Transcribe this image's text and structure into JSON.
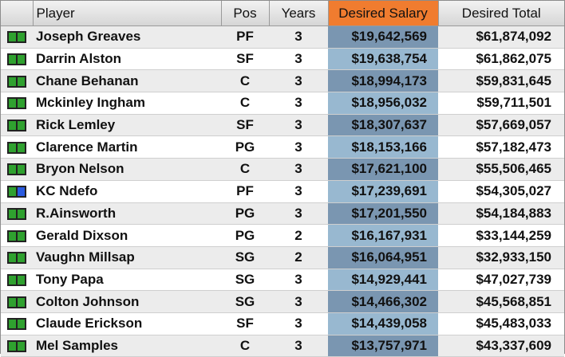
{
  "table": {
    "headers": {
      "player": "Player",
      "pos": "Pos",
      "years": "Years",
      "desired_salary": "Desired Salary",
      "desired_total": "Desired Total"
    },
    "rows": [
      {
        "icon": "green-green-flag-icon",
        "player": "Joseph Greaves",
        "pos": "PF",
        "years": "3",
        "salary": "$19,642,569",
        "total": "$61,874,092"
      },
      {
        "icon": "green-green-flag-icon",
        "player": "Darrin Alston",
        "pos": "SF",
        "years": "3",
        "salary": "$19,638,754",
        "total": "$61,862,075"
      },
      {
        "icon": "green-green-flag-icon",
        "player": "Chane Behanan",
        "pos": "C",
        "years": "3",
        "salary": "$18,994,173",
        "total": "$59,831,645"
      },
      {
        "icon": "green-green-flag-icon",
        "player": "Mckinley Ingham",
        "pos": "C",
        "years": "3",
        "salary": "$18,956,032",
        "total": "$59,711,501"
      },
      {
        "icon": "green-green-flag-icon",
        "player": "Rick Lemley",
        "pos": "SF",
        "years": "3",
        "salary": "$18,307,637",
        "total": "$57,669,057"
      },
      {
        "icon": "green-green-flag-icon",
        "player": "Clarence Martin",
        "pos": "PG",
        "years": "3",
        "salary": "$18,153,166",
        "total": "$57,182,473"
      },
      {
        "icon": "green-green-flag-icon",
        "player": "Bryon Nelson",
        "pos": "C",
        "years": "3",
        "salary": "$17,621,100",
        "total": "$55,506,465"
      },
      {
        "icon": "green-blue-flag-icon",
        "player": "KC Ndefo",
        "pos": "PF",
        "years": "3",
        "salary": "$17,239,691",
        "total": "$54,305,027"
      },
      {
        "icon": "green-green-flag-icon",
        "player": "R.Ainsworth",
        "pos": "PG",
        "years": "3",
        "salary": "$17,201,550",
        "total": "$54,184,883"
      },
      {
        "icon": "green-green-flag-icon",
        "player": "Gerald Dixson",
        "pos": "PG",
        "years": "2",
        "salary": "$16,167,931",
        "total": "$33,144,259"
      },
      {
        "icon": "green-green-flag-icon",
        "player": "Vaughn Millsap",
        "pos": "SG",
        "years": "2",
        "salary": "$16,064,951",
        "total": "$32,933,150"
      },
      {
        "icon": "green-green-flag-icon",
        "player": "Tony Papa",
        "pos": "SG",
        "years": "3",
        "salary": "$14,929,441",
        "total": "$47,027,739"
      },
      {
        "icon": "green-green-flag-icon",
        "player": "Colton Johnson",
        "pos": "SG",
        "years": "3",
        "salary": "$14,466,302",
        "total": "$45,568,851"
      },
      {
        "icon": "green-green-flag-icon",
        "player": "Claude Erickson",
        "pos": "SF",
        "years": "3",
        "salary": "$14,439,058",
        "total": "$45,483,033"
      },
      {
        "icon": "green-green-flag-icon",
        "player": "Mel Samples",
        "pos": "C",
        "years": "3",
        "salary": "$13,757,971",
        "total": "$43,337,609"
      }
    ]
  },
  "colors": {
    "sort_header": "#f07c2f",
    "salary_dark": "#7a96b1",
    "salary_light": "#98b8d0",
    "flag_green": "#2fa12f",
    "flag_blue": "#2a5be0"
  }
}
